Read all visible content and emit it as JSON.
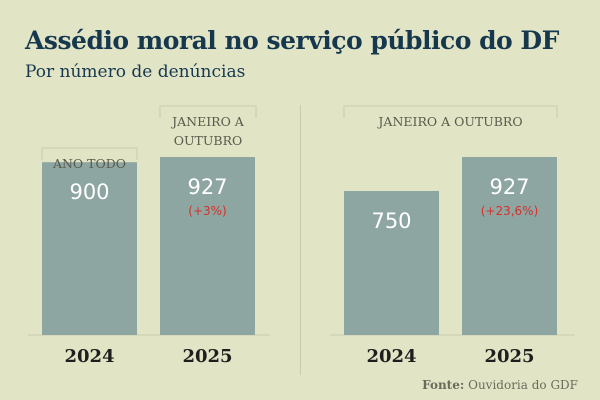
{
  "title": "Assédio moral no serviço público do DF",
  "subtitle": "Por número de denúncias",
  "source_label": "Fonte:",
  "source_text": "Ouvidoria do GDF",
  "colors": {
    "background": "#e2e4c6",
    "bar": "#8da6a2",
    "title": "#16384e",
    "change": "#d6302a"
  },
  "chart_data": [
    {
      "type": "bar",
      "categories": [
        "2024",
        "2025"
      ],
      "values": [
        900,
        927
      ],
      "bar_labels": [
        "900",
        "927"
      ],
      "change_labels": [
        "",
        "(+3%)"
      ],
      "annotations": [
        "ANO TODO",
        "JANEIRO A OUTUBRO"
      ],
      "ylim": [
        0,
        927
      ]
    },
    {
      "type": "bar",
      "categories": [
        "2024",
        "2025"
      ],
      "values": [
        750,
        927
      ],
      "bar_labels": [
        "750",
        "927"
      ],
      "change_labels": [
        "",
        "(+23,6%)"
      ],
      "annotations": [
        "JANEIRO A OUTUBRO"
      ],
      "ylim": [
        0,
        927
      ]
    }
  ]
}
